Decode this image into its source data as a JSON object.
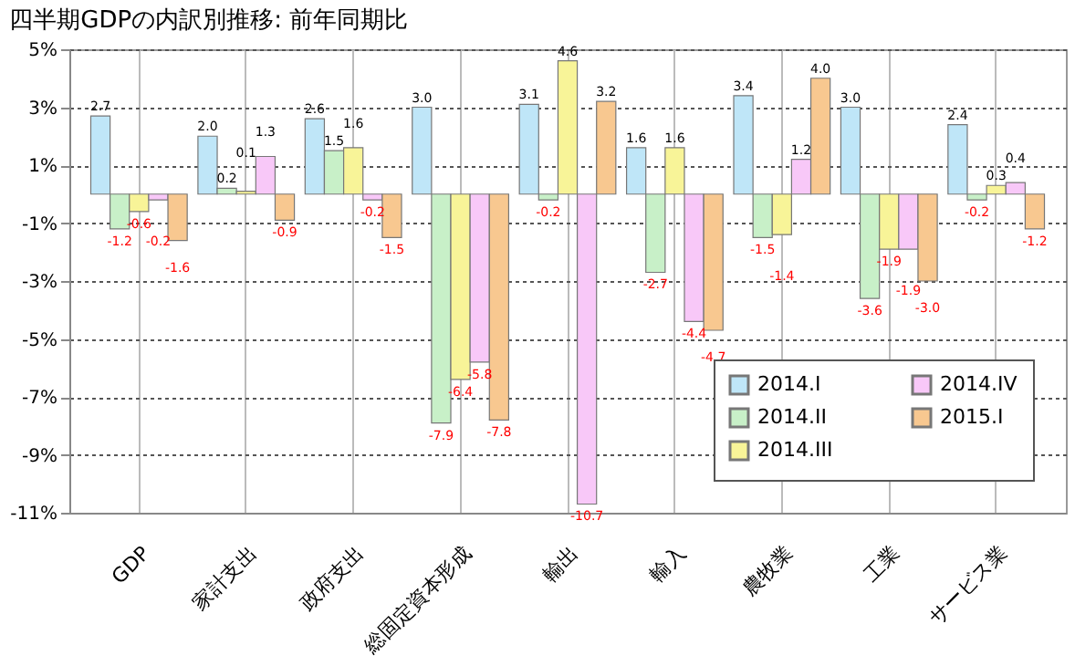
{
  "chart_data": {
    "type": "bar",
    "title": "四半期GDPの内訳別推移: 前年同期比",
    "categories": [
      "GDP",
      "家計支出",
      "政府支出",
      "総固定資本形成",
      "輸出",
      "輸入",
      "農牧業",
      "工業",
      "サービス業"
    ],
    "series": [
      {
        "name": "2014.I",
        "color": "#bfe6f8",
        "values": [
          2.7,
          2.0,
          2.6,
          3.0,
          3.1,
          1.6,
          3.4,
          3.0,
          2.4
        ],
        "value_labels": [
          "2.7",
          "2.0",
          "2.6",
          "3.0",
          "3.1",
          "1.6",
          "3.4",
          "3.0",
          "2.4"
        ]
      },
      {
        "name": "2014.II",
        "color": "#c8f0c8",
        "values": [
          -1.2,
          0.2,
          1.5,
          -7.9,
          -0.2,
          -2.7,
          -1.5,
          -3.6,
          -0.2
        ],
        "value_labels": [
          "-1.2",
          "0.2",
          "1.5",
          "-7.9",
          "-0.2",
          "-2.7",
          "-1.5",
          "-3.6",
          "-0.2"
        ]
      },
      {
        "name": "2014.III",
        "color": "#f8f498",
        "values": [
          -0.6,
          0.1,
          1.6,
          -6.4,
          4.6,
          1.6,
          -1.4,
          -1.9,
          0.3
        ],
        "value_labels": [
          "-0.6",
          "0.1",
          "1.6",
          "-6.4",
          "4.6",
          "1.6",
          "-1.4",
          "-1.9",
          "0.3"
        ]
      },
      {
        "name": "2014.IV",
        "color": "#f8c8f8",
        "values": [
          -0.2,
          1.3,
          -0.2,
          -5.8,
          -10.7,
          -4.4,
          1.2,
          -1.9,
          0.4
        ],
        "value_labels": [
          "-0.2",
          "1.3",
          "-0.2",
          "-5.8",
          "-10.7",
          "-4.4",
          "1.2",
          "-1.9",
          "0.4"
        ]
      },
      {
        "name": "2015.I",
        "color": "#f8c890",
        "values": [
          -1.6,
          -0.9,
          -1.5,
          -7.8,
          3.2,
          -4.7,
          4.0,
          -3.0,
          -1.2
        ],
        "value_labels": [
          "-1.6",
          "-0.9",
          "-1.5",
          "-7.8",
          "3.2",
          "-4.7",
          "4.0",
          "-3.0",
          "-1.2"
        ]
      }
    ],
    "ylim": [
      -11,
      5
    ],
    "yticks": [
      {
        "value": 5,
        "label": "5%"
      },
      {
        "value": 3,
        "label": "3%"
      },
      {
        "value": 1,
        "label": "1%"
      },
      {
        "value": -1,
        "label": "-1%"
      },
      {
        "value": -3,
        "label": "-3%"
      },
      {
        "value": -5,
        "label": "-5%"
      },
      {
        "value": -7,
        "label": "-7%"
      },
      {
        "value": -9,
        "label": "-9%"
      },
      {
        "value": -11,
        "label": "-11%"
      }
    ],
    "grid": true,
    "legend": "bottom right"
  }
}
